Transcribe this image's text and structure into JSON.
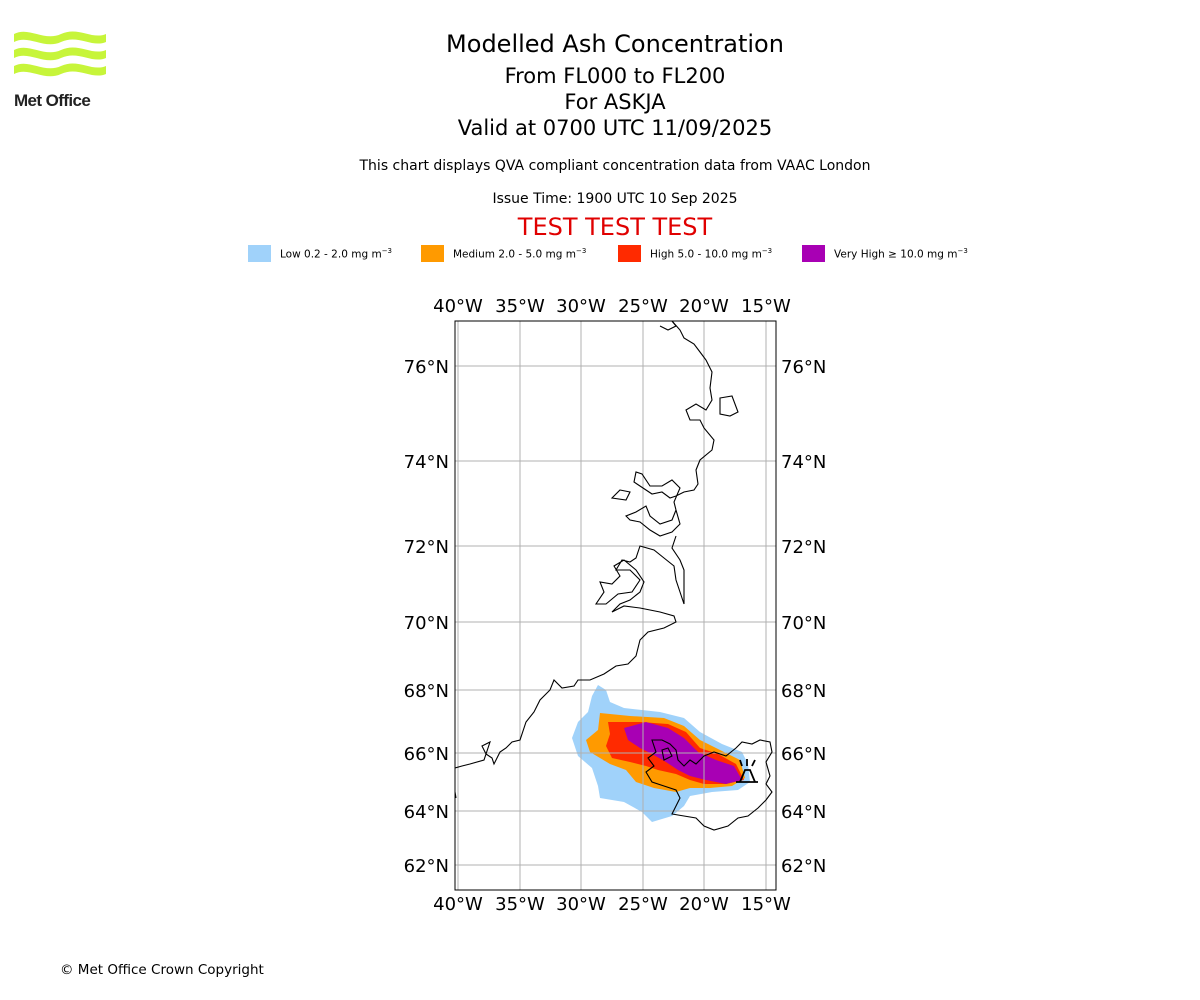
{
  "header": {
    "brand": "Met Office",
    "title": "Modelled Ash Concentration",
    "level_range": "From FL000 to FL200",
    "volcano": "For ASKJA",
    "valid_time": "Valid at 0700 UTC 11/09/2025",
    "compliance_note": "This chart displays QVA compliant concentration data from VAAC London",
    "issue_time": "Issue Time: 1900 UTC 10 Sep 2025",
    "test_banner": "TEST TEST TEST"
  },
  "legend": [
    {
      "label": "Low 0.2 - 2.0 mg m",
      "color": "#a0d2fa"
    },
    {
      "label": "Medium 2.0 - 5.0 mg m",
      "color": "#ff9a00"
    },
    {
      "label": "High 5.0 - 10.0 mg m",
      "color": "#ff2a00"
    },
    {
      "label": "Very High ≥ 10.0 mg m",
      "color": "#a800b4"
    }
  ],
  "legend_unit_exponent": "−3",
  "map": {
    "lon_ticks": [
      "40°W",
      "35°W",
      "30°W",
      "25°W",
      "20°W",
      "15°W"
    ],
    "lat_ticks": [
      "76°N",
      "74°N",
      "72°N",
      "70°N",
      "68°N",
      "66°N",
      "64°N",
      "62°N"
    ],
    "grid": true,
    "volcano_marker": "volcano-symbol"
  },
  "footer": {
    "copyright": "© Met Office Crown Copyright"
  }
}
